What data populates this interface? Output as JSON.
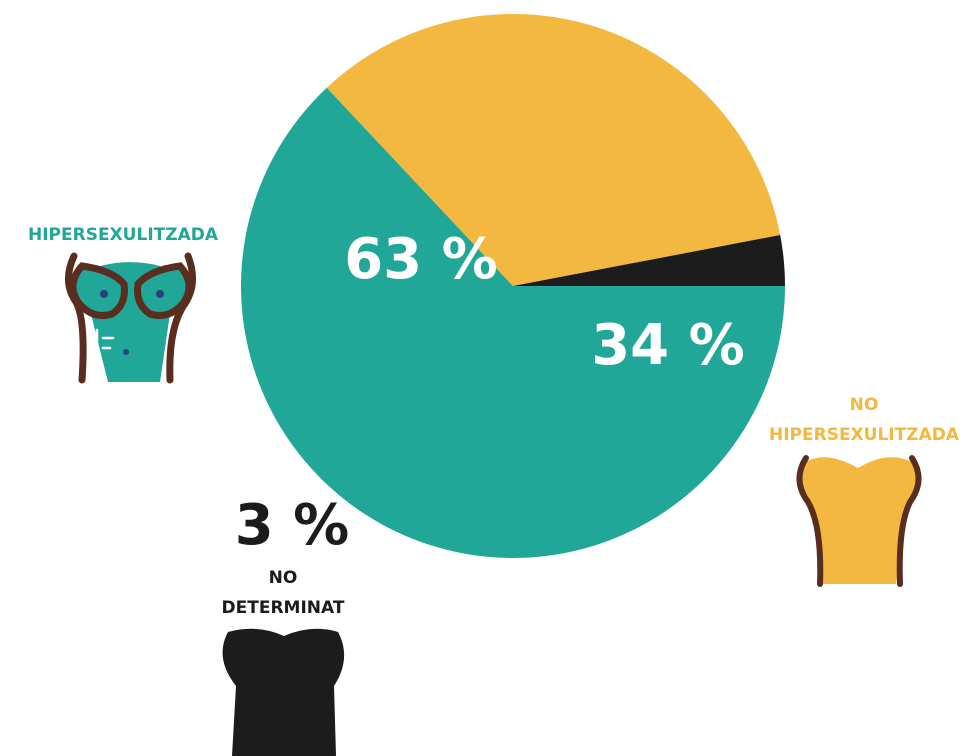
{
  "chart_data": {
    "type": "pie",
    "categories": [
      "HIPERSEXULITZADA",
      "NO HIPERSEXULITZADA",
      "NO DETERMINAT"
    ],
    "values": [
      63,
      34,
      3
    ],
    "value_labels": [
      "63 %",
      "34 %",
      "3 %"
    ],
    "label_lines": [
      [
        "HIPERSEXULITZADA"
      ],
      [
        "NO",
        "HIPERSEXULITZADA"
      ],
      [
        "NO",
        "DETERMINAT"
      ]
    ],
    "colors": [
      "#20a798",
      "#f2b83f",
      "#1c1c1c"
    ],
    "value_label_colors": [
      "#ffffff",
      "#ffffff",
      "#1c1c1c"
    ],
    "icons": [
      "hypersexualized-torso-icon",
      "non-hypersexualized-torso-icon",
      "undetermined-torso-icon"
    ],
    "title": "",
    "legend": "none"
  }
}
